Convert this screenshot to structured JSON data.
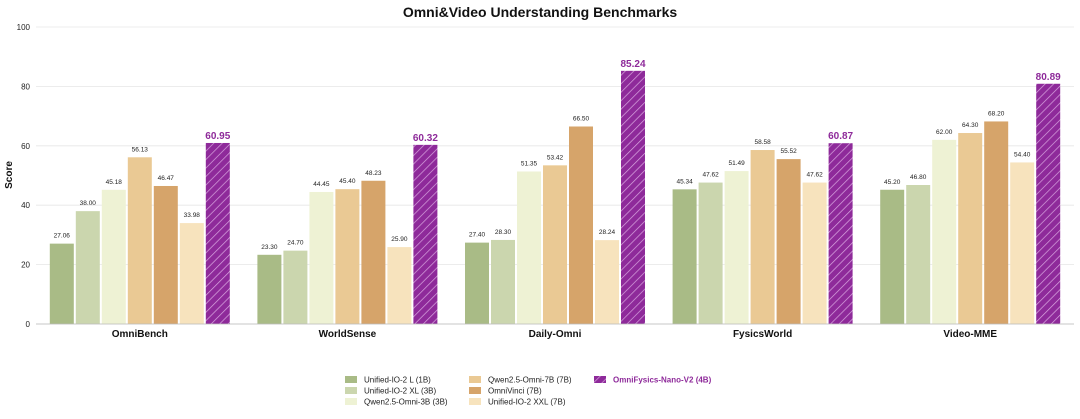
{
  "chart_data": {
    "type": "bar",
    "title": "Omni&Video Understanding Benchmarks",
    "ylabel": "Score",
    "xlabel": "",
    "ylim": [
      0,
      100
    ],
    "yticks": [
      "0",
      "20",
      "40",
      "60",
      "80",
      "100"
    ],
    "grid": true,
    "legend_position": "bottom-center",
    "categories": [
      "OmniBench",
      "WorldSense",
      "Daily-Omni",
      "FysicsWorld",
      "Video-MME"
    ],
    "series": [
      {
        "name": "Unified-IO-2 L (1B)",
        "color": "#a9bb86",
        "values": [
          27.06,
          23.3,
          27.4,
          45.34,
          45.2
        ],
        "labels": [
          "27.06",
          "23.30",
          "27.40",
          "45.34",
          "45.20"
        ]
      },
      {
        "name": "Unified-IO-2 XL (3B)",
        "color": "#cbd6ae",
        "values": [
          38.0,
          24.7,
          28.3,
          47.62,
          46.8
        ],
        "labels": [
          "38.00",
          "24.70",
          "28.30",
          "47.62",
          "46.80"
        ]
      },
      {
        "name": "Qwen2.5-Omni-3B (3B)",
        "color": "#eef2d4",
        "values": [
          45.18,
          44.45,
          51.35,
          51.49,
          62.0
        ],
        "labels": [
          "45.18",
          "44.45",
          "51.35",
          "51.49",
          "62.00"
        ]
      },
      {
        "name": "Qwen2.5-Omni-7B (7B)",
        "color": "#eac994",
        "values": [
          56.13,
          45.4,
          53.42,
          58.58,
          64.3
        ],
        "labels": [
          "56.13",
          "45.40",
          "53.42",
          "58.58",
          "64.30"
        ]
      },
      {
        "name": "OmniVinci (7B)",
        "color": "#d6a46a",
        "values": [
          46.47,
          48.23,
          66.5,
          55.52,
          68.2
        ],
        "labels": [
          "46.47",
          "48.23",
          "66.50",
          "55.52",
          "68.20"
        ]
      },
      {
        "name": "Unified-IO-2 XXL (7B)",
        "color": "#f7e3bd",
        "values": [
          33.98,
          25.9,
          28.24,
          47.62,
          54.4
        ],
        "labels": [
          "33.98",
          "25.90",
          "28.24",
          "47.62",
          "54.40"
        ]
      },
      {
        "name": "OmniFysics-Nano-V2 (4B)",
        "color": "#8e2a9a",
        "hatched": true,
        "highlight": true,
        "values": [
          60.95,
          60.32,
          85.24,
          60.87,
          80.89
        ],
        "labels": [
          "60.95",
          "60.32",
          "85.24",
          "60.87",
          "80.89"
        ]
      }
    ]
  }
}
